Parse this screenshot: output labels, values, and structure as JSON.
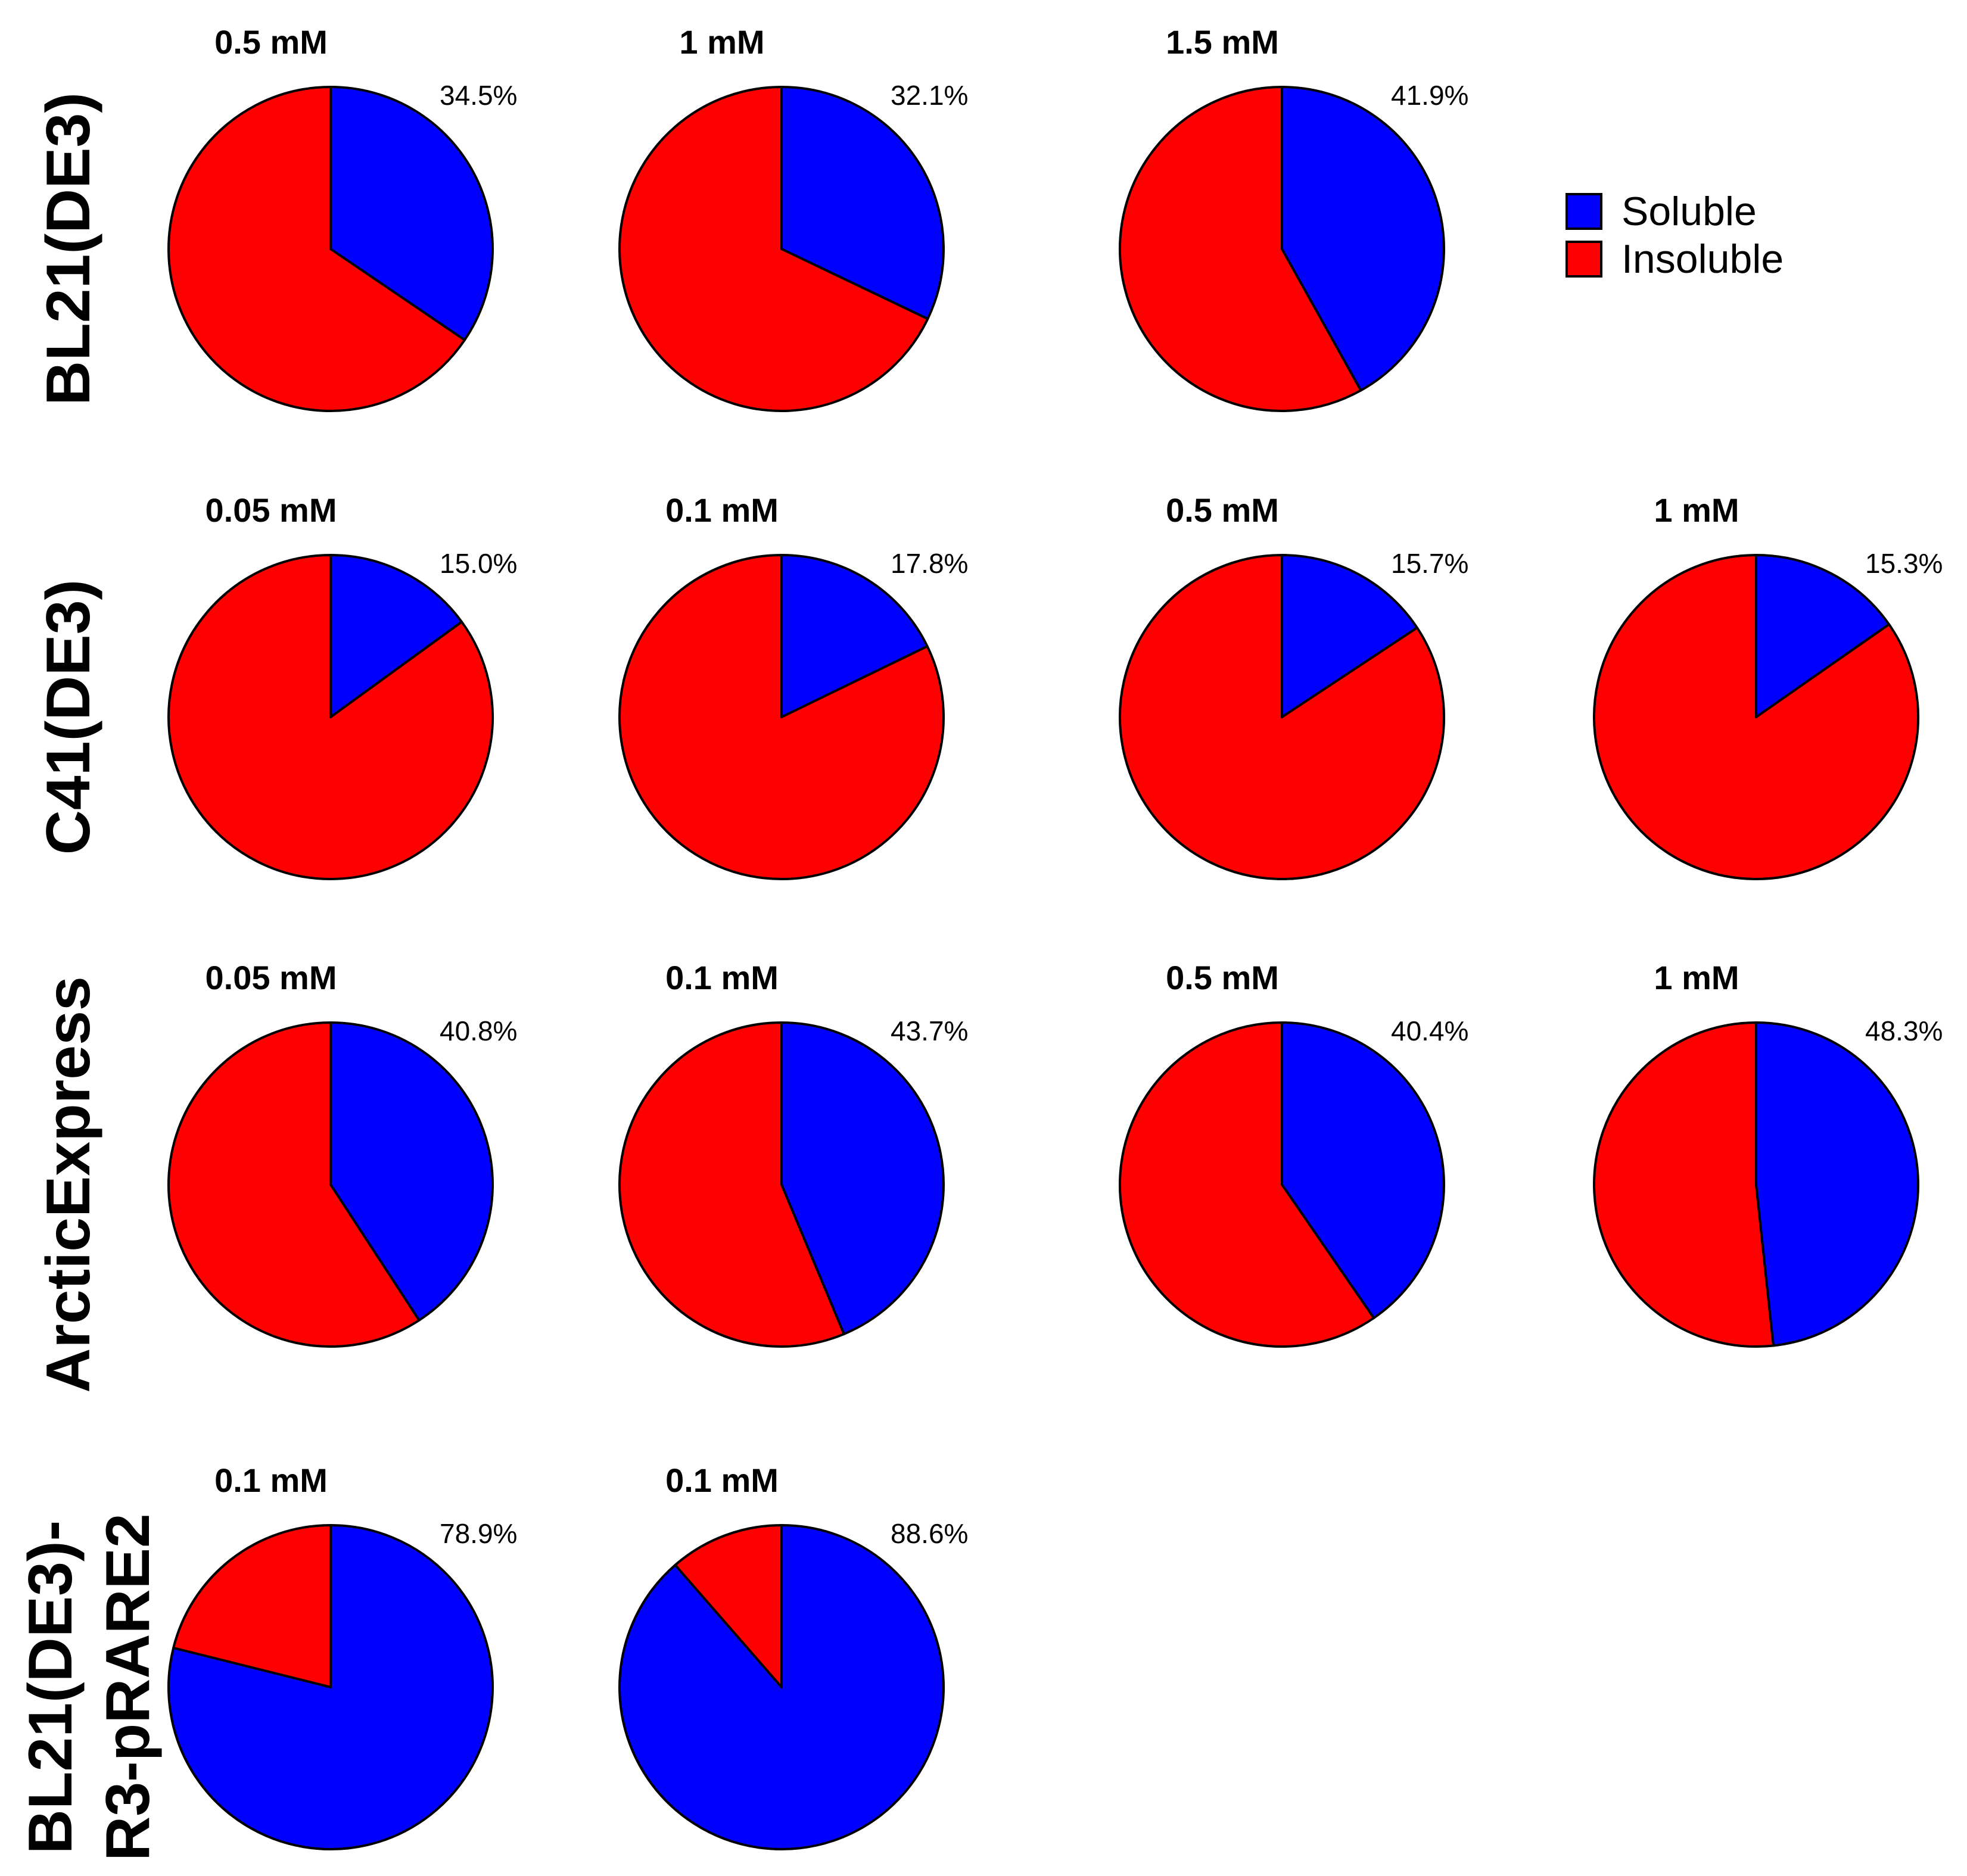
{
  "chart_data": {
    "type": "pie",
    "colors": {
      "soluble": "#0000ff",
      "insoluble": "#ff0000",
      "outline": "#000000"
    },
    "legend": {
      "placement": "top-right",
      "entries": [
        {
          "label": "Soluble",
          "color": "#0000ff"
        },
        {
          "label": "Insoluble",
          "color": "#ff0000"
        }
      ]
    },
    "rows": [
      {
        "label": "BL21(DE3)",
        "label_lines": [
          "BL21(DE3)"
        ],
        "pies": [
          {
            "title": "0.5 mM",
            "soluble_pct": 34.5,
            "label": "34.5%"
          },
          {
            "title": "1 mM",
            "soluble_pct": 32.1,
            "label": "32.1%"
          },
          {
            "title": "1.5 mM",
            "soluble_pct": 41.9,
            "label": "41.9%"
          }
        ]
      },
      {
        "label": "C41(DE3)",
        "label_lines": [
          "C41(DE3)"
        ],
        "pies": [
          {
            "title": "0.05 mM",
            "soluble_pct": 15.0,
            "label": "15.0%"
          },
          {
            "title": "0.1 mM",
            "soluble_pct": 17.8,
            "label": "17.8%"
          },
          {
            "title": "0.5 mM",
            "soluble_pct": 15.7,
            "label": "15.7%"
          },
          {
            "title": "1 mM",
            "soluble_pct": 15.3,
            "label": "15.3%"
          }
        ]
      },
      {
        "label": "ArcticExpress",
        "label_lines": [
          "ArcticExpress"
        ],
        "pies": [
          {
            "title": "0.05 mM",
            "soluble_pct": 40.8,
            "label": "40.8%"
          },
          {
            "title": "0.1 mM",
            "soluble_pct": 43.7,
            "label": "43.7%"
          },
          {
            "title": "0.5 mM",
            "soluble_pct": 40.4,
            "label": "40.4%"
          },
          {
            "title": "1 mM",
            "soluble_pct": 48.3,
            "label": "48.3%"
          }
        ]
      },
      {
        "label": "BL21(DE3)-R3-pRARE2",
        "label_lines": [
          "BL21(DE3)-",
          "R3-pRARE2"
        ],
        "pies": [
          {
            "title": "0.1 mM",
            "soluble_pct": 78.9,
            "label": "78.9%"
          },
          {
            "title": "0.1 mM",
            "soluble_pct": 88.6,
            "label": "88.6%"
          }
        ]
      }
    ]
  }
}
